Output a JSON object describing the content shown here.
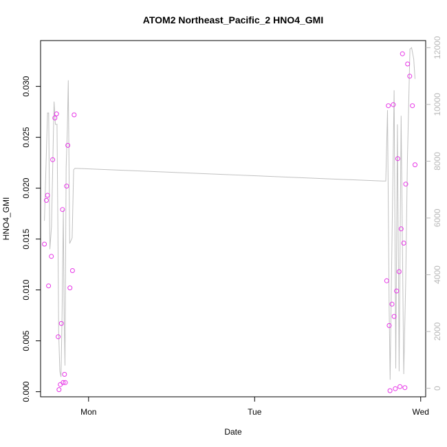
{
  "chart_data": {
    "type": "scatter",
    "title": "ATOM2 Northeast_Pacific_2 HNO4_GMI",
    "xlabel": "Date",
    "ylabel": "HNO4_GMI",
    "x_ticks": [
      {
        "value": 1.0,
        "label": "Mon"
      },
      {
        "value": 2.0,
        "label": "Tue"
      },
      {
        "value": 3.0,
        "label": "Wed"
      }
    ],
    "y_ticks": [
      0.0,
      0.005,
      0.01,
      0.015,
      0.02,
      0.025,
      0.03
    ],
    "y_tick_labels": [
      "0.000",
      "0.005",
      "0.010",
      "0.015",
      "0.020",
      "0.025",
      "0.030"
    ],
    "y2_ticks": [
      0,
      2000,
      4000,
      6000,
      8000,
      10000,
      12000
    ],
    "y2_tick_labels": [
      "0",
      "2000",
      "4000",
      "6000",
      "8000",
      "10000",
      "12000"
    ],
    "xlim": [
      0.711,
      3.03
    ],
    "ylim": [
      -0.0005,
      0.0345
    ],
    "y2lim": [
      -300,
      12250
    ],
    "grid": false,
    "series": [
      {
        "type": "points",
        "color": "#e633e6",
        "points": [
          [
            0.734,
            0.0145
          ],
          [
            0.746,
            0.0188
          ],
          [
            0.753,
            0.0193
          ],
          [
            0.759,
            0.0104
          ],
          [
            0.776,
            0.0133
          ],
          [
            0.784,
            0.0228
          ],
          [
            0.797,
            0.0269
          ],
          [
            0.807,
            0.0273
          ],
          [
            0.817,
            0.0054
          ],
          [
            0.822,
            0.0002
          ],
          [
            0.83,
            0.0007
          ],
          [
            0.836,
            0.0067
          ],
          [
            0.843,
            0.0179
          ],
          [
            0.847,
            0.0009
          ],
          [
            0.855,
            0.0017
          ],
          [
            0.86,
            0.0009
          ],
          [
            0.868,
            0.0202
          ],
          [
            0.875,
            0.0242
          ],
          [
            0.888,
            0.0102
          ],
          [
            0.903,
            0.0119
          ],
          [
            0.913,
            0.0272
          ],
          [
            2.795,
            0.0109
          ],
          [
            2.805,
            0.0281
          ],
          [
            2.81,
            0.0065
          ],
          [
            2.815,
            0.0001
          ],
          [
            2.827,
            0.0086
          ],
          [
            2.835,
            0.0282
          ],
          [
            2.84,
            0.0074
          ],
          [
            2.847,
            0.0003
          ],
          [
            2.855,
            0.0099
          ],
          [
            2.862,
            0.0229
          ],
          [
            2.87,
            0.0118
          ],
          [
            2.875,
            0.0005
          ],
          [
            2.882,
            0.016
          ],
          [
            2.89,
            0.0332
          ],
          [
            2.898,
            0.0146
          ],
          [
            2.905,
            0.0004
          ],
          [
            2.91,
            0.0204
          ],
          [
            2.921,
            0.0322
          ],
          [
            2.934,
            0.031
          ],
          [
            2.95,
            0.0281
          ],
          [
            2.966,
            0.0223
          ]
        ]
      },
      {
        "type": "line",
        "axis": "right",
        "color": "#c0c0c0",
        "points": [
          [
            0.734,
            5900
          ],
          [
            0.753,
            9700
          ],
          [
            0.76,
            9700
          ],
          [
            0.767,
            4900
          ],
          [
            0.777,
            5700
          ],
          [
            0.792,
            10100
          ],
          [
            0.8,
            9300
          ],
          [
            0.81,
            9300
          ],
          [
            0.815,
            5900
          ],
          [
            0.82,
            2000
          ],
          [
            0.827,
            600
          ],
          [
            0.834,
            400
          ],
          [
            0.84,
            2500
          ],
          [
            0.848,
            6300
          ],
          [
            0.853,
            2400
          ],
          [
            0.858,
            800
          ],
          [
            0.865,
            7800
          ],
          [
            0.872,
            9100
          ],
          [
            0.878,
            10850
          ],
          [
            0.886,
            5100
          ],
          [
            0.901,
            5300
          ],
          [
            0.91,
            7700
          ],
          [
            0.918,
            7750
          ],
          [
            2.77,
            7300
          ],
          [
            2.79,
            7300
          ],
          [
            2.8,
            9800
          ],
          [
            2.81,
            2800
          ],
          [
            2.816,
            300
          ],
          [
            2.825,
            4300
          ],
          [
            2.84,
            10500
          ],
          [
            2.85,
            700
          ],
          [
            2.86,
            9300
          ],
          [
            2.87,
            600
          ],
          [
            2.882,
            9600
          ],
          [
            2.898,
            500
          ],
          [
            2.91,
            3800
          ],
          [
            2.92,
            8000
          ],
          [
            2.935,
            11950
          ],
          [
            2.945,
            12000
          ],
          [
            2.958,
            11600
          ],
          [
            2.966,
            10900
          ]
        ]
      }
    ]
  }
}
